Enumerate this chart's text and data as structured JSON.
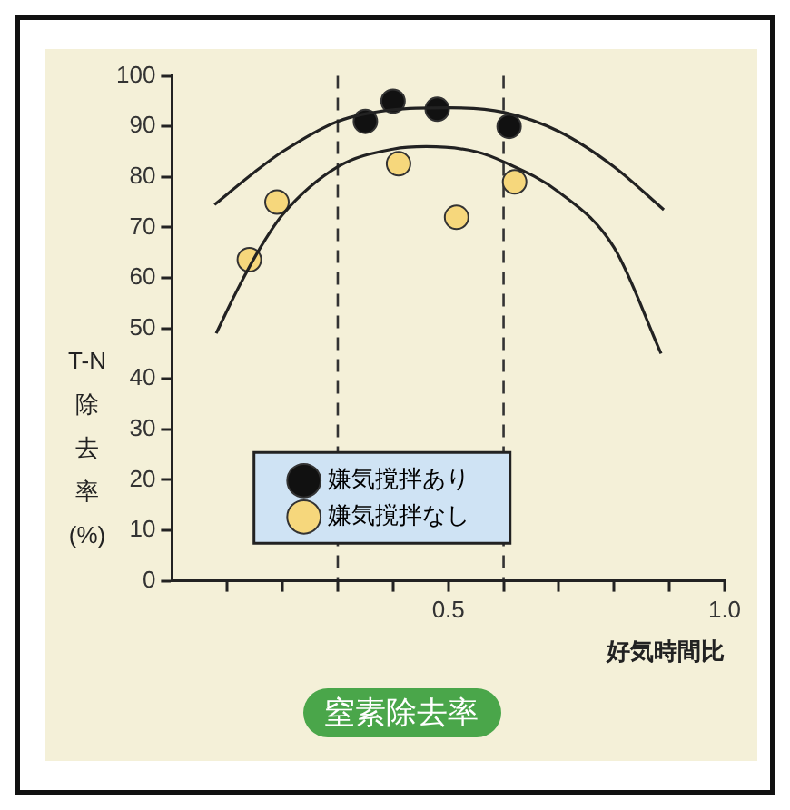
{
  "chart_data": {
    "type": "scatter",
    "title": "窒素除去率",
    "xlabel": "好気時間比",
    "ylabel": "T-N除去率(%)",
    "xlim": [
      0,
      1.0
    ],
    "xticks": [
      {
        "value": 0.1,
        "label": null
      },
      {
        "value": 0.2,
        "label": null
      },
      {
        "value": 0.3,
        "label": null
      },
      {
        "value": 0.4,
        "label": null
      },
      0.5,
      {
        "value": 0.6,
        "label": null
      },
      {
        "value": 0.7,
        "label": null
      },
      {
        "value": 0.8,
        "label": null
      },
      {
        "value": 0.9,
        "label": null
      },
      {
        "value": 1,
        "label": "1.0"
      }
    ],
    "ylim": [
      0,
      100
    ],
    "yticks": [
      0,
      10,
      20,
      30,
      40,
      50,
      60,
      70,
      80,
      90,
      100
    ],
    "grid": false,
    "legend": "bottom",
    "marker": "circle",
    "ref_lines": [
      {
        "axis": "x",
        "value": 0.3,
        "color": "#333333",
        "line_style": "dashed"
      },
      {
        "axis": "x",
        "value": 0.6,
        "color": "#333333",
        "line_style": "dashed"
      }
    ],
    "series": [
      {
        "type": "line",
        "color": "#222222",
        "marker": "none",
        "x": [
          0.077,
          0.15,
          0.2,
          0.3,
          0.4,
          0.5,
          0.6,
          0.7,
          0.8,
          0.89
        ],
        "values": [
          74.5,
          81,
          85,
          91,
          93.3,
          93.7,
          92.8,
          89,
          82,
          73.5
        ]
      },
      {
        "type": "line",
        "color": "#222222",
        "marker": "none",
        "x": [
          0.08,
          0.12,
          0.16,
          0.2,
          0.3,
          0.4,
          0.46,
          0.55,
          0.6,
          0.7,
          0.8,
          0.885
        ],
        "values": [
          49,
          58,
          66,
          72.5,
          82,
          85.5,
          86,
          85,
          83,
          77,
          66,
          45
        ]
      },
      {
        "name": "嫌気撹拌あり",
        "color": "#111111",
        "x": [
          0.35,
          0.4,
          0.48,
          0.61
        ],
        "values": [
          91,
          95,
          93.4,
          90
        ]
      },
      {
        "name": "嫌気撹拌なし",
        "color": "#f6d77c",
        "x": [
          0.14,
          0.19,
          0.41,
          0.515,
          0.62
        ],
        "values": [
          63.6,
          75,
          82.6,
          72,
          79
        ]
      }
    ]
  }
}
